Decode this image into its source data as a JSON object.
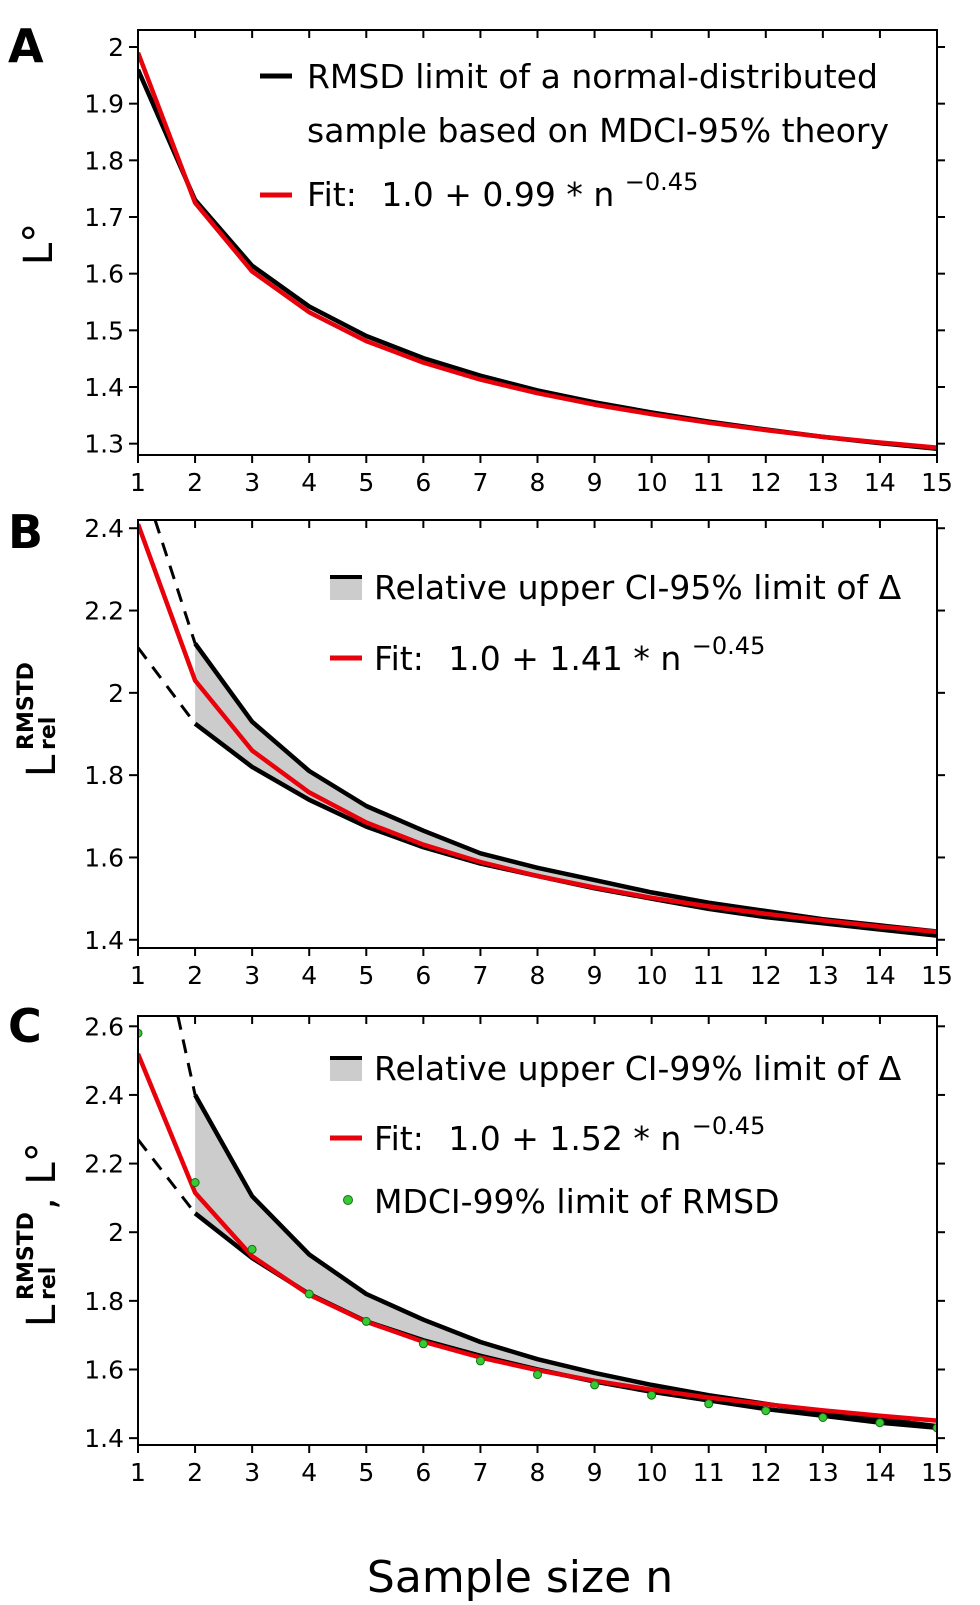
{
  "xlabel": "Sample size n",
  "chart_data": [
    {
      "type": "line",
      "panel": "A",
      "ylabel": "L°",
      "ylim": [
        1.28,
        2.03
      ],
      "xlim": [
        1,
        15
      ],
      "yticks": [
        1.3,
        1.4,
        1.5,
        1.6,
        1.7,
        1.8,
        1.9,
        2
      ],
      "xticks": [
        1,
        2,
        3,
        4,
        5,
        6,
        7,
        8,
        9,
        10,
        11,
        12,
        13,
        14,
        15
      ],
      "x": [
        1,
        2,
        3,
        4,
        5,
        6,
        7,
        8,
        9,
        10,
        11,
        12,
        13,
        14,
        15
      ],
      "legend_position": "top-right",
      "series": [
        {
          "name": "RMSD limit of a normal-distributed sample based on MDCI-95% theory",
          "legend_lines": [
            "RMSD limit of a normal-distributed",
            "sample based on MDCI-95% theory"
          ],
          "color": "#000000",
          "values": [
            1.96,
            1.73,
            1.614,
            1.542,
            1.49,
            1.451,
            1.42,
            1.394,
            1.373,
            1.355,
            1.339,
            1.325,
            1.312,
            1.301,
            1.291
          ]
        },
        {
          "name": "Fit:",
          "legend_formula": "1.0 + 0.99 * n",
          "legend_exponent": "−0.45",
          "color": "#e8000b",
          "values": [
            1.99,
            1.725,
            1.604,
            1.532,
            1.481,
            1.443,
            1.413,
            1.389,
            1.369,
            1.352,
            1.337,
            1.324,
            1.312,
            1.302,
            1.293
          ]
        }
      ]
    },
    {
      "type": "area",
      "panel": "B",
      "ylabel_main": "L",
      "ylabel_sup": "RMSTD",
      "ylabel_sub": "rel",
      "ylim": [
        1.38,
        2.42
      ],
      "xlim": [
        1,
        15
      ],
      "yticks": [
        1.4,
        1.6,
        1.8,
        2,
        2.2,
        2.4
      ],
      "xticks": [
        1,
        2,
        3,
        4,
        5,
        6,
        7,
        8,
        9,
        10,
        11,
        12,
        13,
        14,
        15
      ],
      "x": [
        2,
        3,
        4,
        5,
        6,
        7,
        8,
        9,
        10,
        11,
        12,
        13,
        14,
        15
      ],
      "legend_position": "top-right",
      "band": {
        "name": "Relative upper CI-95% limit of Δ",
        "fill": "#cccccc",
        "upper": [
          2.12,
          1.93,
          1.81,
          1.725,
          1.665,
          1.61,
          1.575,
          1.545,
          1.515,
          1.49,
          1.47,
          1.45,
          1.435,
          1.42
        ],
        "lower": [
          1.925,
          1.82,
          1.74,
          1.675,
          1.625,
          1.585,
          1.555,
          1.525,
          1.5,
          1.475,
          1.455,
          1.44,
          1.425,
          1.41
        ]
      },
      "dashed": {
        "upper": {
          "x": [
            1.3,
            2
          ],
          "y": [
            2.42,
            2.12
          ]
        },
        "lower": {
          "x": [
            1,
            2
          ],
          "y": [
            2.11,
            1.925
          ]
        }
      },
      "fit": {
        "name": "Fit:",
        "legend_formula": "1.0 + 1.41 * n",
        "legend_exponent": "−0.45",
        "color": "#e8000b",
        "x": [
          1,
          2,
          3,
          4,
          5,
          6,
          7,
          8,
          9,
          10,
          11,
          12,
          13,
          14,
          15
        ],
        "values": [
          2.41,
          2.03,
          1.86,
          1.758,
          1.685,
          1.631,
          1.589,
          1.555,
          1.527,
          1.502,
          1.481,
          1.463,
          1.447,
          1.432,
          1.419
        ]
      }
    },
    {
      "type": "area",
      "panel": "C",
      "ylabel_main": "L",
      "ylabel_sup": "RMSTD",
      "ylabel_sub": "rel",
      "ylabel_suffix": ", L°",
      "ylim": [
        1.38,
        2.63
      ],
      "xlim": [
        1,
        15
      ],
      "yticks": [
        1.4,
        1.6,
        1.8,
        2,
        2.2,
        2.4,
        2.6
      ],
      "xticks": [
        1,
        2,
        3,
        4,
        5,
        6,
        7,
        8,
        9,
        10,
        11,
        12,
        13,
        14,
        15
      ],
      "x": [
        2,
        3,
        4,
        5,
        6,
        7,
        8,
        9,
        10,
        11,
        12,
        13,
        14,
        15
      ],
      "legend_position": "top-right",
      "band": {
        "name": "Relative upper CI-99% limit of Δ",
        "fill": "#cccccc",
        "upper": [
          2.4,
          2.105,
          1.935,
          1.82,
          1.745,
          1.68,
          1.63,
          1.59,
          1.555,
          1.525,
          1.5,
          1.475,
          1.455,
          1.435
        ],
        "lower": [
          2.055,
          1.925,
          1.82,
          1.74,
          1.685,
          1.64,
          1.6,
          1.565,
          1.535,
          1.51,
          1.485,
          1.465,
          1.445,
          1.43
        ]
      },
      "dashed": {
        "upper": {
          "x": [
            1.7,
            2
          ],
          "y": [
            2.63,
            2.4
          ]
        },
        "lower": {
          "x": [
            1,
            2
          ],
          "y": [
            2.27,
            2.055
          ]
        }
      },
      "fit": {
        "name": "Fit:",
        "legend_formula": "1.0 + 1.52 * n",
        "legend_exponent": "−0.45",
        "color": "#e8000b",
        "x": [
          1,
          2,
          3,
          4,
          5,
          6,
          7,
          8,
          9,
          10,
          11,
          12,
          13,
          14,
          15
        ],
        "values": [
          2.52,
          2.115,
          1.93,
          1.818,
          1.739,
          1.681,
          1.635,
          1.598,
          1.567,
          1.541,
          1.518,
          1.499,
          1.481,
          1.465,
          1.451
        ]
      },
      "points": {
        "name": "MDCI-99% limit of RMSD",
        "color": "#33cc33",
        "x": [
          1,
          2,
          3,
          4,
          5,
          6,
          7,
          8,
          9,
          10,
          11,
          12,
          13,
          14,
          15
        ],
        "values": [
          2.58,
          2.145,
          1.95,
          1.82,
          1.74,
          1.675,
          1.625,
          1.585,
          1.555,
          1.525,
          1.5,
          1.48,
          1.46,
          1.445,
          1.43
        ]
      }
    }
  ]
}
